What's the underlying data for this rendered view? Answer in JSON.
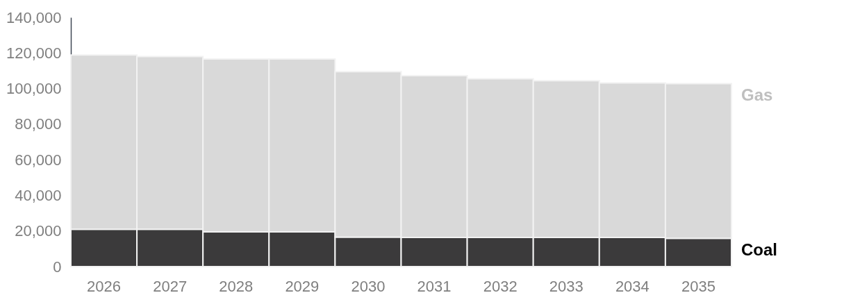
{
  "chart_data": {
    "type": "bar",
    "stacked": true,
    "categories": [
      "2026",
      "2027",
      "2028",
      "2029",
      "2030",
      "2031",
      "2032",
      "2033",
      "2034",
      "2035"
    ],
    "series": [
      {
        "name": "Coal",
        "color": "#3b3a3b",
        "values": [
          21000,
          21000,
          19500,
          19500,
          16600,
          16400,
          16400,
          16400,
          16400,
          15900
        ]
      },
      {
        "name": "Gas",
        "color": "#d9d9d9",
        "values": [
          97800,
          97000,
          97100,
          97100,
          92900,
          90800,
          89100,
          88000,
          86700,
          86900
        ]
      }
    ],
    "ylim": [
      0,
      140000
    ],
    "yticks": [
      0,
      {
        "value": 20000,
        "label": "20,000"
      },
      {
        "value": 40000,
        "label": "40,000"
      },
      {
        "value": 60000,
        "label": "60,000"
      },
      {
        "value": 80000,
        "label": "80,000"
      },
      {
        "value": 100000,
        "label": "100,000"
      },
      {
        "value": 120000,
        "label": "120,000"
      },
      {
        "value": 140000,
        "label": "140,000"
      }
    ],
    "grid": false
  }
}
